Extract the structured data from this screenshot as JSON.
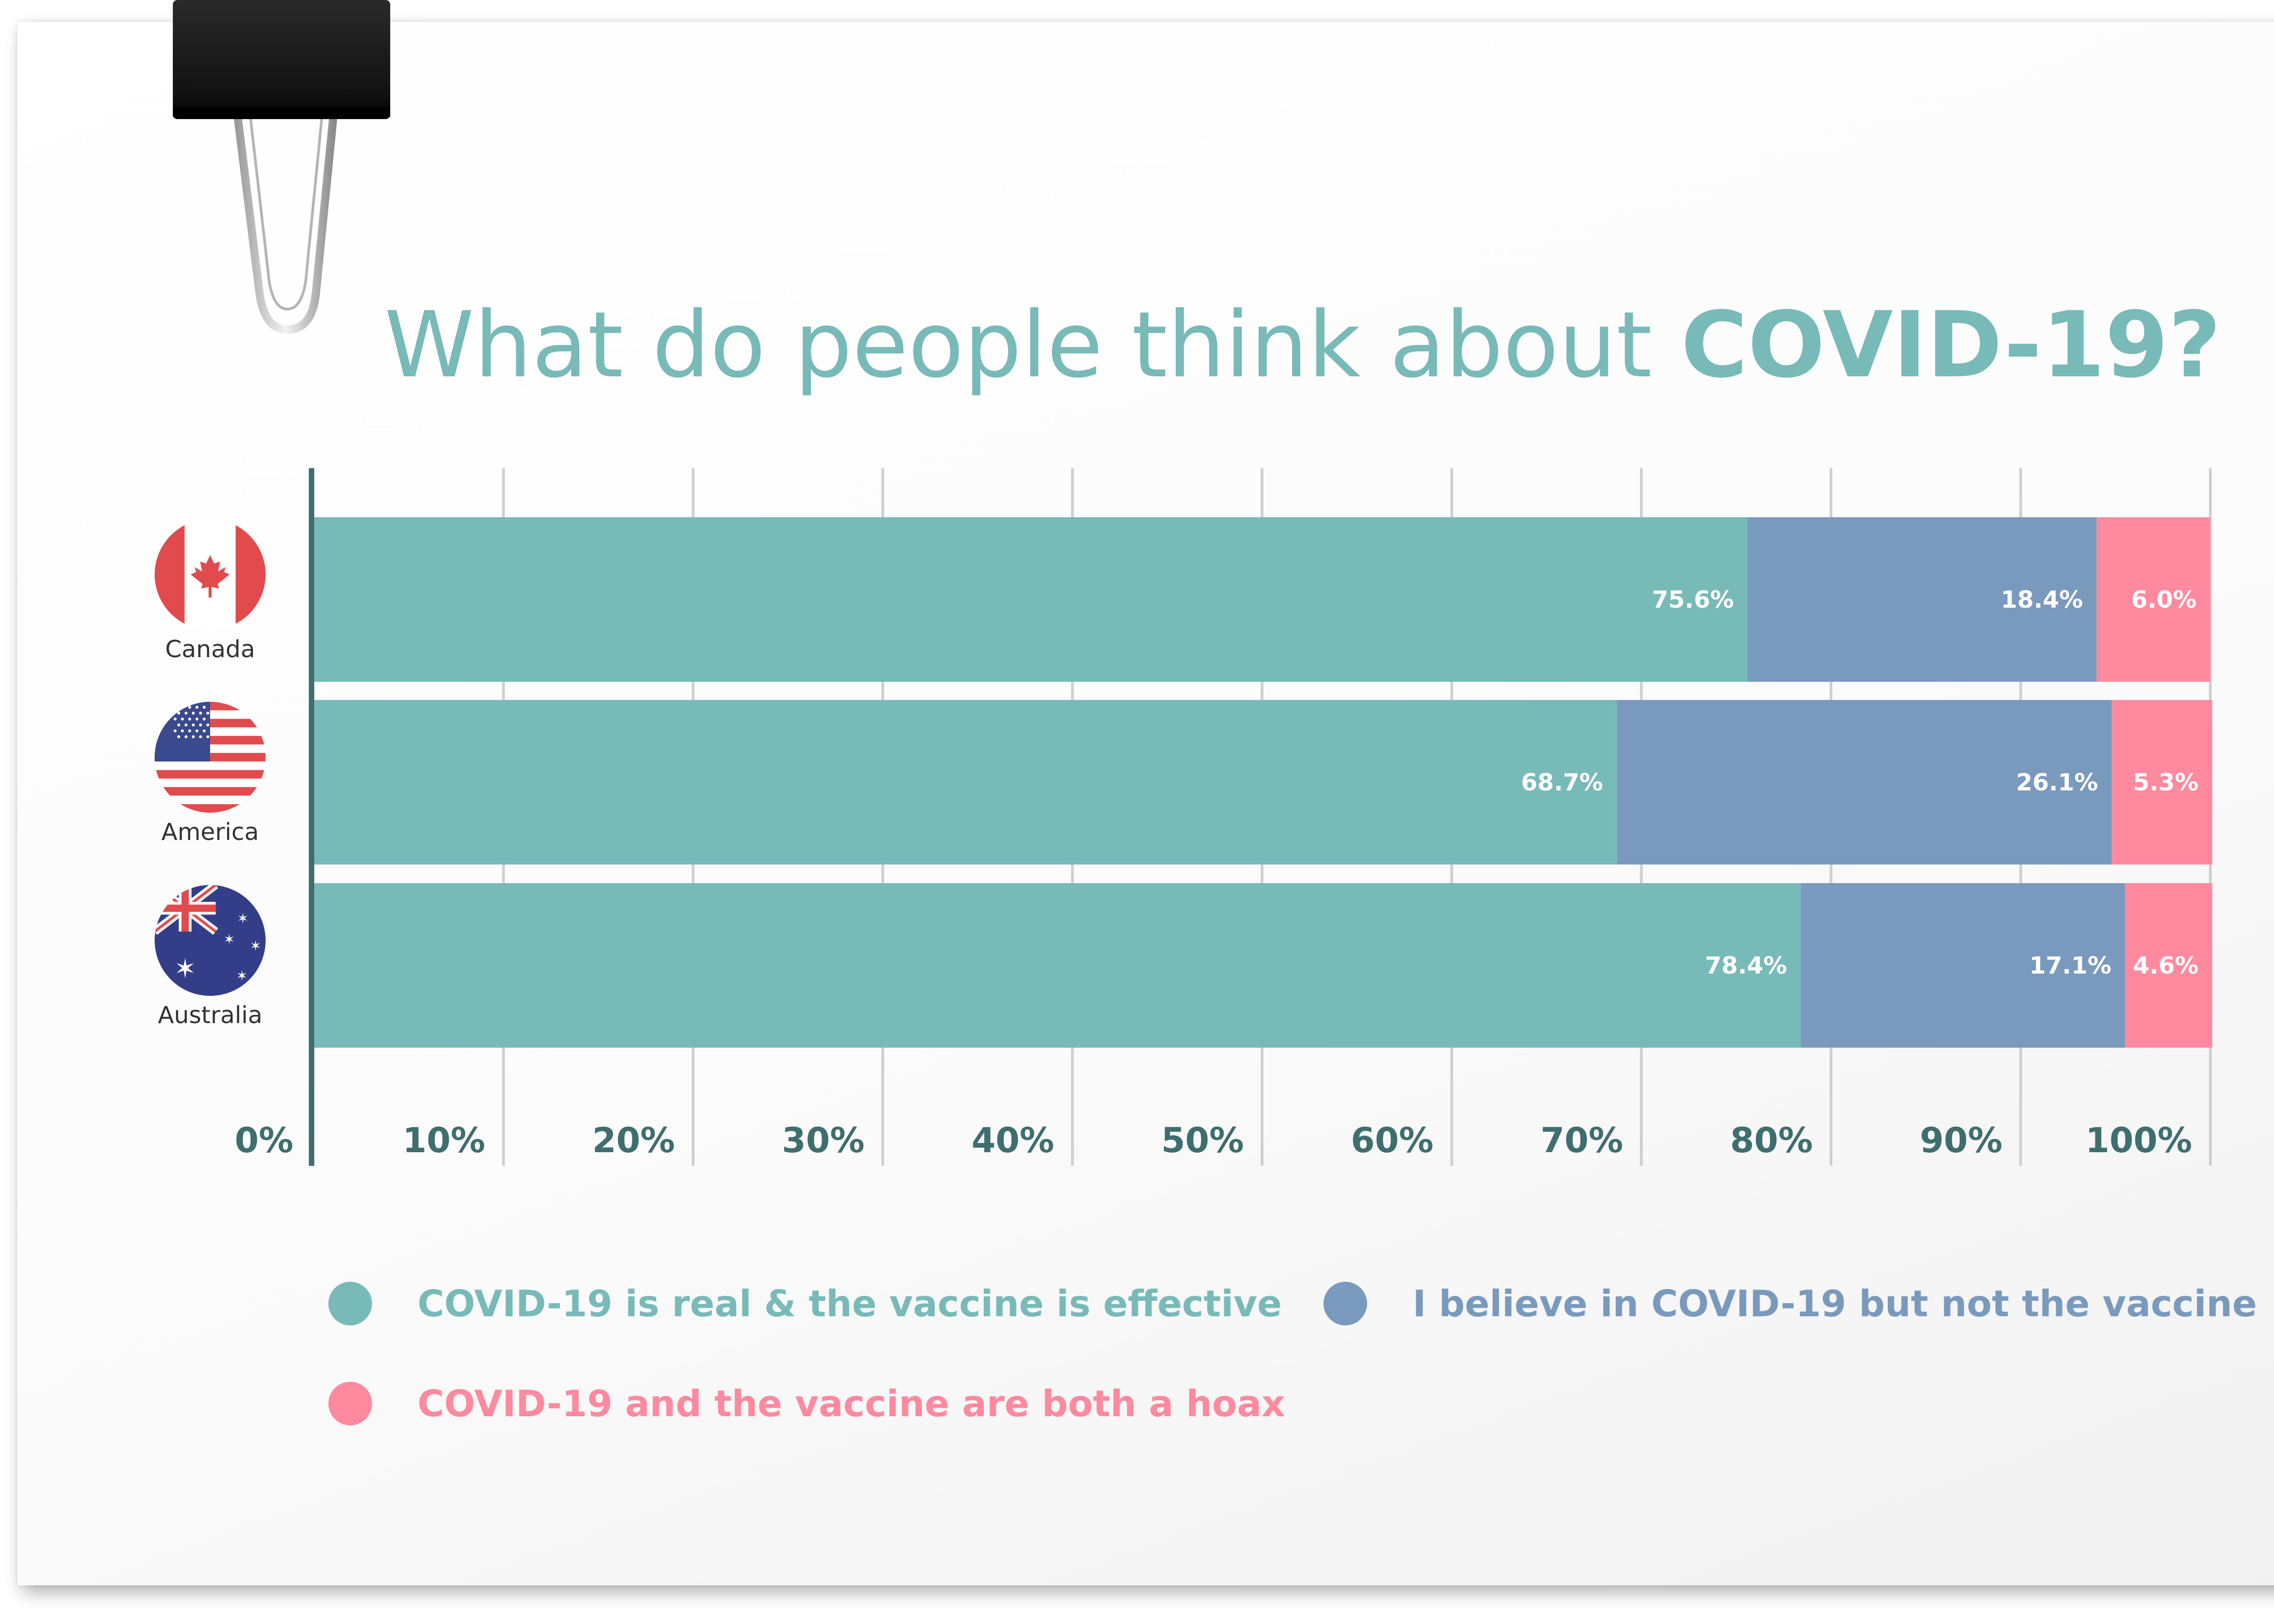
{
  "title": {
    "regular": "What do people think about ",
    "bold": "COVID-19?"
  },
  "colors": {
    "real": "#78bab8",
    "believe": "#7a9abd",
    "hoax": "#ff899f",
    "axis": "#3f6e6e",
    "grid": "#cfcfcf"
  },
  "chart_data": {
    "type": "bar",
    "orientation": "horizontal",
    "stacked": true,
    "categories": [
      "Canada",
      "America",
      "Australia"
    ],
    "category_icons": [
      "canada-flag-icon",
      "usa-flag-icon",
      "australia-flag-icon"
    ],
    "series": [
      {
        "name": "COVID-19 is real & the vaccine is effective",
        "values": [
          75.6,
          68.7,
          78.4
        ],
        "labels": [
          "75.6%",
          "68.7%",
          "78.4%"
        ]
      },
      {
        "name": "I believe in COVID-19 but not the vaccine",
        "values": [
          18.4,
          26.1,
          17.1
        ],
        "labels": [
          "18.4%",
          "26.1%",
          "17.1%"
        ]
      },
      {
        "name": "COVID-19 and the vaccine are both a hoax",
        "values": [
          6.0,
          5.3,
          4.6
        ],
        "labels": [
          "6.0%",
          "5.3%",
          "4.6%"
        ]
      }
    ],
    "xlim": [
      0,
      100
    ],
    "xticks": [
      "0%",
      "10%",
      "20%",
      "30%",
      "40%",
      "50%",
      "60%",
      "70%",
      "80%",
      "90%",
      "100%"
    ],
    "grid": true,
    "legend_position": "bottom"
  }
}
